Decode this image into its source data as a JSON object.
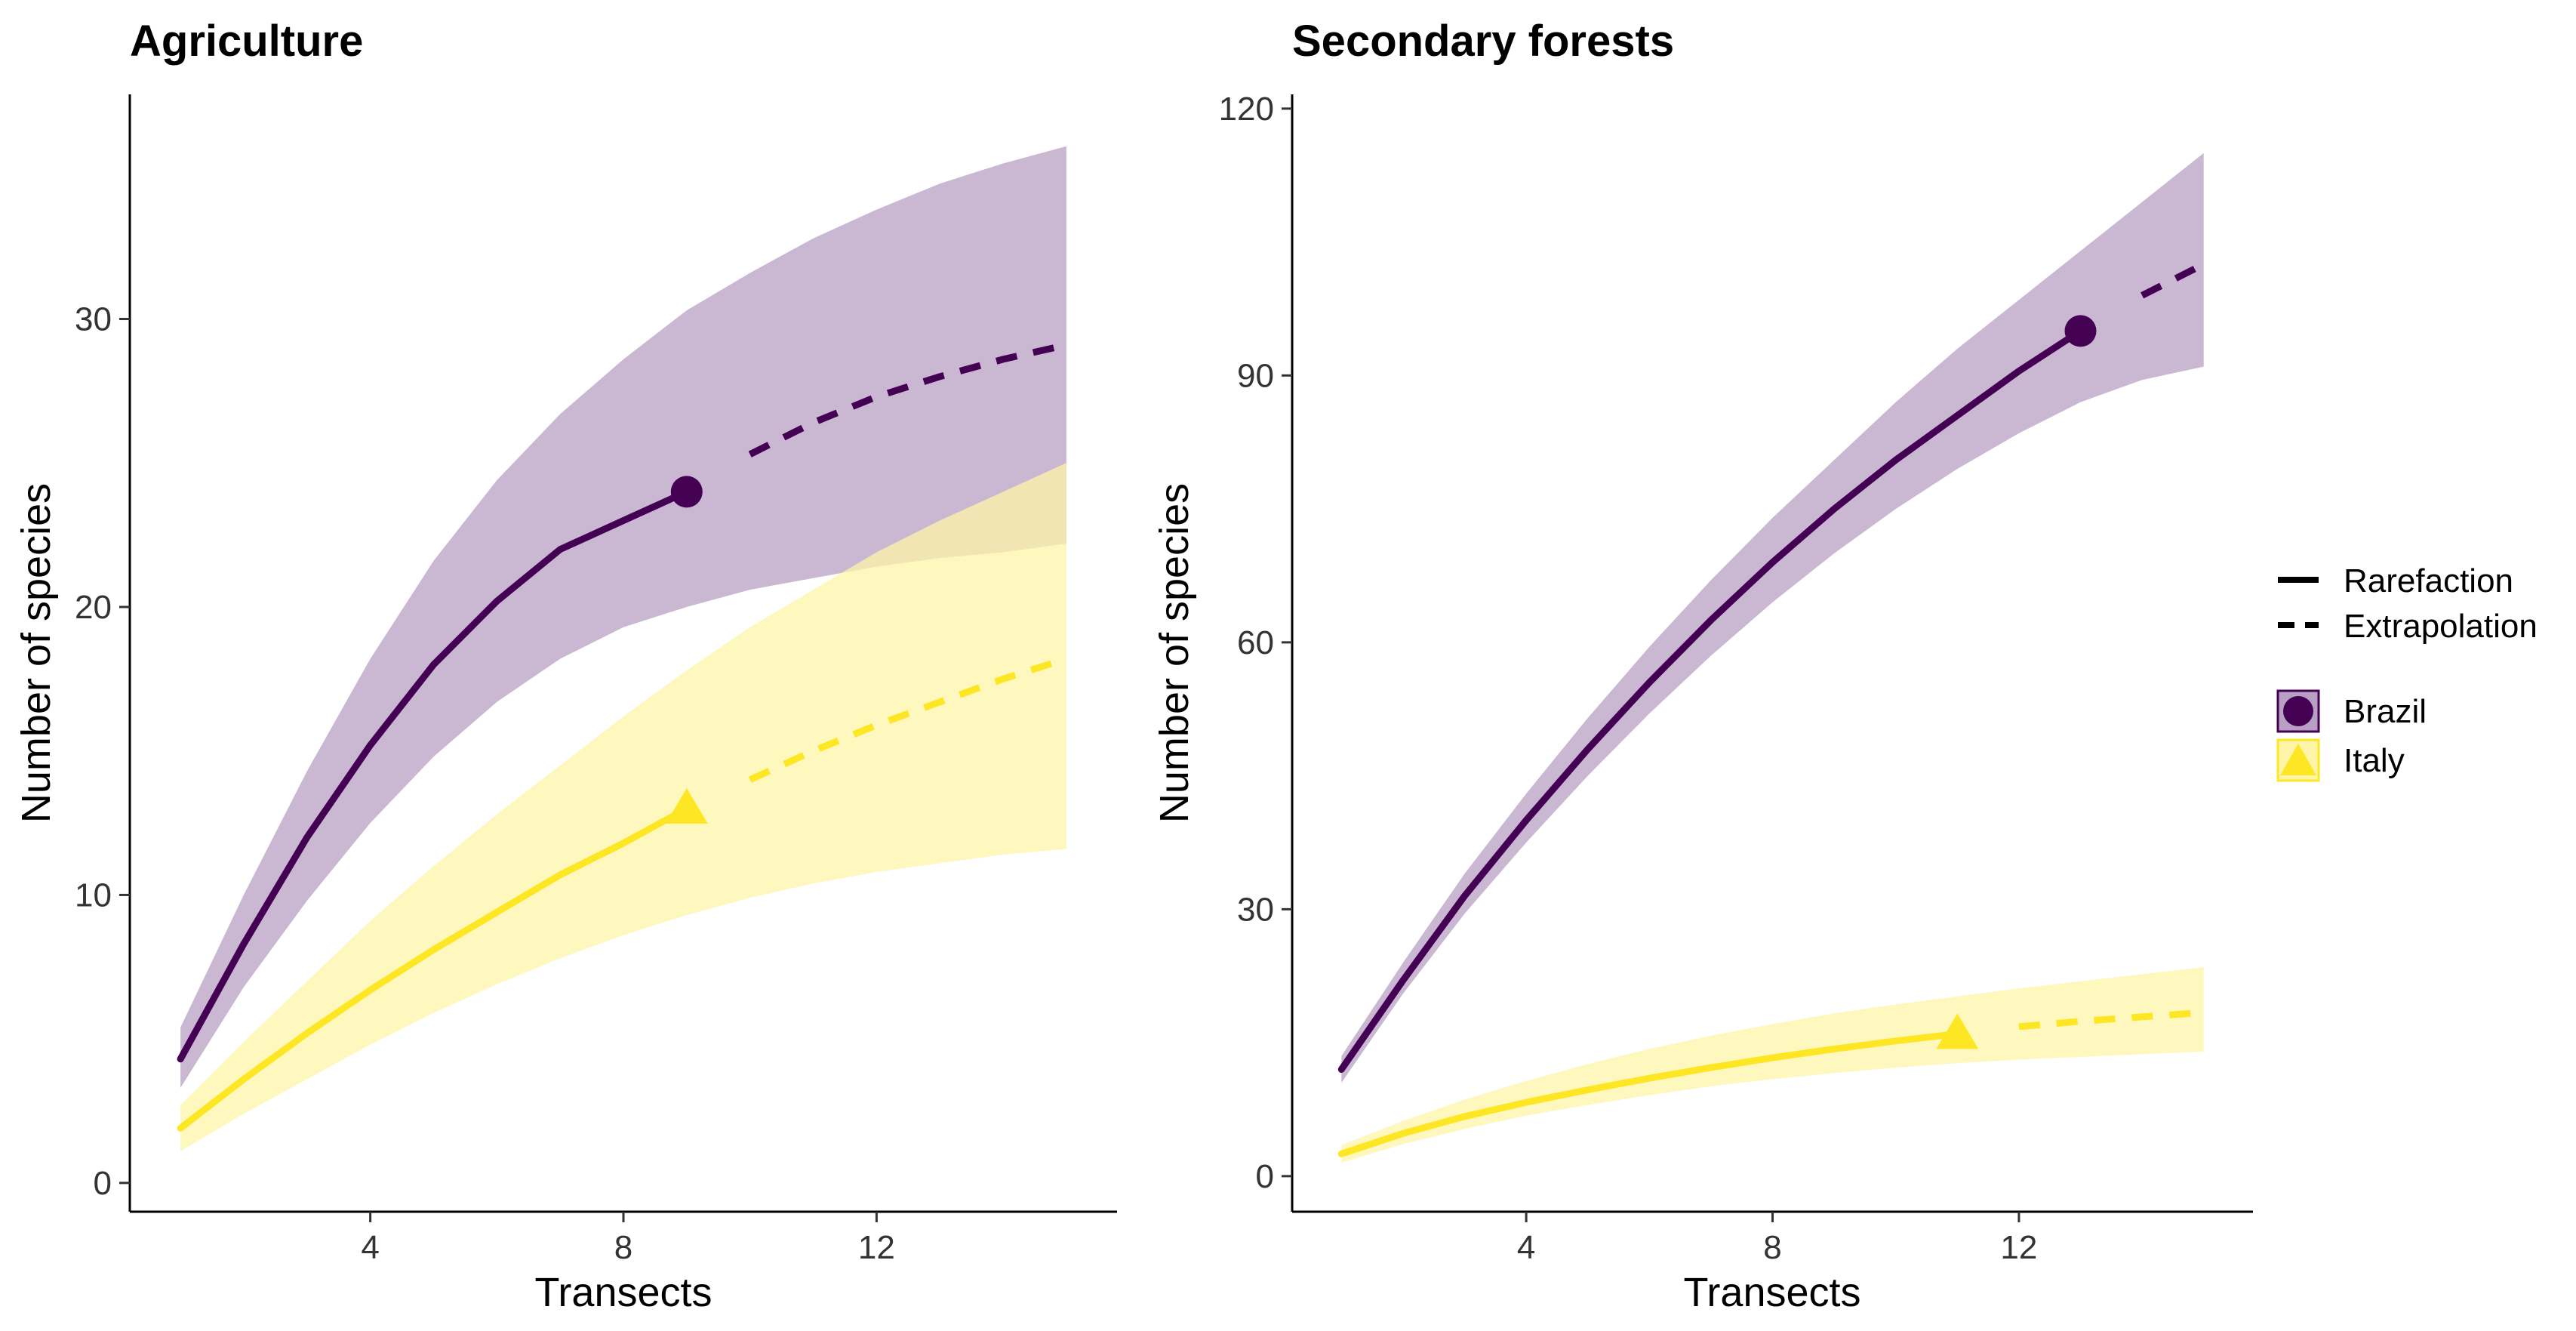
{
  "chart_data": [
    {
      "type": "line",
      "title": "Agriculture",
      "xlabel": "Transects",
      "ylabel": "Number of species",
      "xlim": [
        0.2,
        15.8
      ],
      "ylim": [
        -1,
        37.8
      ],
      "x_ticks": [
        4,
        8,
        12
      ],
      "x_tick_labels": [
        "4",
        "8",
        "12"
      ],
      "y_ticks": [
        0,
        10,
        20,
        30
      ],
      "y_tick_labels": [
        "0",
        "10",
        "20",
        "30"
      ],
      "grid": false,
      "series": [
        {
          "name": "Brazil",
          "color": "#440154",
          "band_color": "#b8a0c4",
          "marker": "circle",
          "observed": {
            "x": 9,
            "y": 24
          },
          "rarefaction": {
            "x": [
              1,
              2,
              3,
              4,
              5,
              6,
              7,
              8,
              9
            ],
            "y": [
              4.3,
              8.3,
              12.0,
              15.2,
              18.0,
              20.2,
              22.0,
              23.0,
              24.0
            ]
          },
          "extrapolation": {
            "x": [
              10,
              11,
              12,
              13,
              14,
              15
            ],
            "y": [
              25.3,
              26.4,
              27.3,
              28.0,
              28.6,
              29.1
            ]
          },
          "ci": {
            "x": [
              1,
              2,
              3,
              4,
              5,
              6,
              7,
              8,
              9,
              10,
              11,
              12,
              13,
              14,
              15
            ],
            "lower": [
              3.3,
              6.8,
              9.8,
              12.5,
              14.8,
              16.7,
              18.2,
              19.3,
              20.0,
              20.6,
              21.0,
              21.4,
              21.7,
              21.9,
              22.2
            ],
            "upper": [
              5.4,
              10.0,
              14.3,
              18.2,
              21.6,
              24.4,
              26.7,
              28.6,
              30.3,
              31.6,
              32.8,
              33.8,
              34.7,
              35.4,
              36.0
            ]
          }
        },
        {
          "name": "Italy",
          "color": "#fde725",
          "band_color": "#fef5a8",
          "marker": "triangle",
          "observed": {
            "x": 9,
            "y": 13
          },
          "rarefaction": {
            "x": [
              1,
              2,
              3,
              4,
              5,
              6,
              7,
              8,
              9
            ],
            "y": [
              1.9,
              3.6,
              5.2,
              6.7,
              8.1,
              9.4,
              10.7,
              11.8,
              13.0
            ]
          },
          "extrapolation": {
            "x": [
              10,
              11,
              12,
              13,
              14,
              15
            ],
            "y": [
              14.0,
              15.0,
              15.9,
              16.7,
              17.5,
              18.2
            ]
          },
          "ci": {
            "x": [
              1,
              2,
              3,
              4,
              5,
              6,
              7,
              8,
              9,
              10,
              11,
              12,
              13,
              14,
              15
            ],
            "lower": [
              1.1,
              2.4,
              3.6,
              4.8,
              5.9,
              6.9,
              7.8,
              8.6,
              9.3,
              9.9,
              10.4,
              10.8,
              11.1,
              11.4,
              11.6
            ],
            "upper": [
              2.7,
              4.9,
              7.0,
              9.1,
              11.0,
              12.8,
              14.5,
              16.2,
              17.8,
              19.3,
              20.6,
              21.9,
              23.0,
              24.0,
              25.0
            ]
          }
        }
      ]
    },
    {
      "type": "line",
      "title": "Secondary forests",
      "xlabel": "Transects",
      "ylabel": "Number of species",
      "xlim": [
        0.2,
        15.8
      ],
      "ylim": [
        -4,
        121.6
      ],
      "x_ticks": [
        4,
        8,
        12
      ],
      "x_tick_labels": [
        "4",
        "8",
        "12"
      ],
      "y_ticks": [
        0,
        30,
        60,
        90,
        120
      ],
      "y_tick_labels": [
        "0",
        "30",
        "60",
        "90",
        "120"
      ],
      "grid": false,
      "series": [
        {
          "name": "Brazil",
          "color": "#440154",
          "band_color": "#b8a0c4",
          "marker": "circle",
          "observed": {
            "x": 13,
            "y": 95
          },
          "rarefaction": {
            "x": [
              1,
              2,
              3,
              4,
              5,
              6,
              7,
              8,
              9,
              10,
              11,
              12,
              13
            ],
            "y": [
              12,
              22,
              31.5,
              40,
              48,
              55.5,
              62.5,
              69,
              75,
              80.5,
              85.5,
              90.5,
              95
            ]
          },
          "extrapolation": {
            "x": [
              14,
              15
            ],
            "y": [
              99,
              102.5
            ]
          },
          "ci": {
            "x": [
              1,
              2,
              3,
              4,
              5,
              6,
              7,
              8,
              9,
              10,
              11,
              12,
              13,
              14,
              15
            ],
            "lower": [
              10.5,
              20.5,
              29.5,
              37.5,
              45,
              52,
              58.5,
              64.5,
              70,
              75,
              79.5,
              83.5,
              87,
              89.5,
              91
            ],
            "upper": [
              13.5,
              24,
              34,
              43,
              51.5,
              59.5,
              67,
              74,
              80.5,
              87,
              93,
              98.5,
              104,
              109.5,
              115
            ]
          }
        },
        {
          "name": "Italy",
          "color": "#fde725",
          "band_color": "#fef5a8",
          "marker": "triangle",
          "observed": {
            "x": 11,
            "y": 16
          },
          "rarefaction": {
            "x": [
              1,
              2,
              3,
              4,
              5,
              6,
              7,
              8,
              9,
              10,
              11
            ],
            "y": [
              2.5,
              4.8,
              6.7,
              8.3,
              9.7,
              11,
              12.2,
              13.3,
              14.3,
              15.2,
              16
            ]
          },
          "extrapolation": {
            "x": [
              12,
              13,
              14,
              15
            ],
            "y": [
              16.8,
              17.4,
              17.9,
              18.4
            ]
          },
          "ci": {
            "x": [
              1,
              2,
              3,
              4,
              5,
              6,
              7,
              8,
              9,
              10,
              11,
              12,
              13,
              14,
              15
            ],
            "lower": [
              1.5,
              3.6,
              5.3,
              6.8,
              8,
              9.1,
              10.1,
              10.9,
              11.6,
              12.2,
              12.7,
              13.1,
              13.4,
              13.7,
              14
            ],
            "upper": [
              3.5,
              6.2,
              8.6,
              10.7,
              12.6,
              14.3,
              15.8,
              17.1,
              18.3,
              19.3,
              20.2,
              21.1,
              21.9,
              22.7,
              23.5
            ]
          }
        }
      ]
    }
  ],
  "legend": {
    "position": "right",
    "line_types": [
      {
        "label": "Rarefaction",
        "dash": "solid"
      },
      {
        "label": "Extrapolation",
        "dash": "dashed"
      }
    ],
    "groups": [
      {
        "label": "Brazil",
        "color": "#440154",
        "band_color": "#b8a0c4",
        "marker": "circle"
      },
      {
        "label": "Italy",
        "color": "#fde725",
        "band_color": "#fef5a8",
        "marker": "triangle"
      }
    ]
  }
}
